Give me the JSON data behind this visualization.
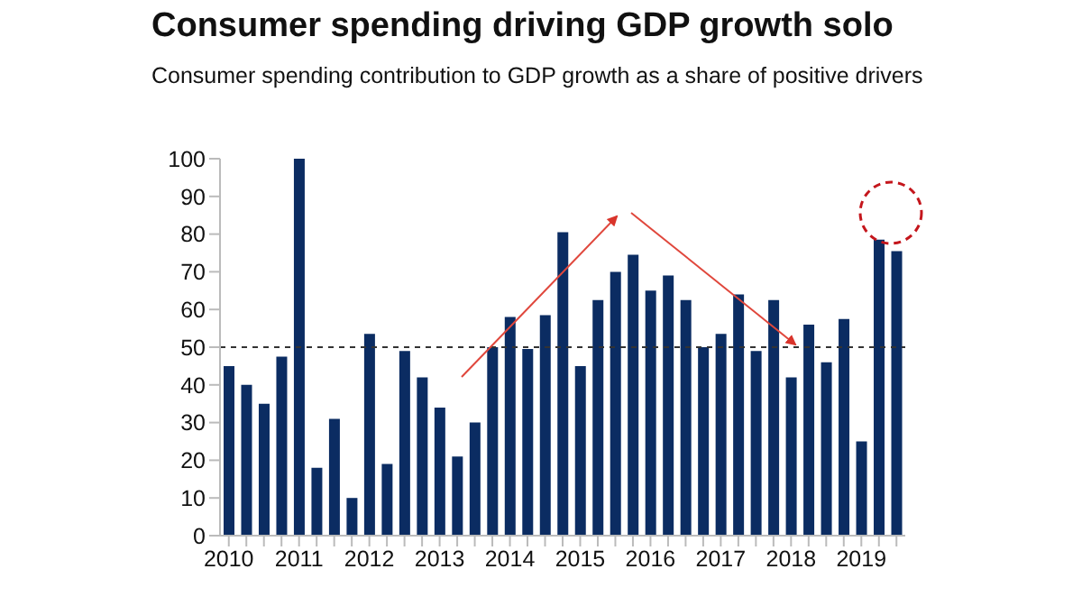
{
  "chart_data": {
    "type": "bar",
    "title": "Consumer spending driving GDP growth solo",
    "subtitle": "Consumer spending contribution to GDP growth as a share of positive drivers",
    "categories": [
      "2010",
      null,
      null,
      null,
      "2011",
      null,
      null,
      null,
      "2012",
      null,
      null,
      null,
      "2013",
      null,
      null,
      null,
      "2014",
      null,
      null,
      null,
      "2015",
      null,
      null,
      null,
      "2016",
      null,
      null,
      null,
      "2017",
      null,
      null,
      null,
      "2018",
      null,
      null,
      null,
      "2019",
      null,
      null
    ],
    "values": [
      45,
      40,
      35,
      47.5,
      100,
      18,
      31,
      10,
      53.5,
      19,
      49,
      42,
      34,
      21,
      30,
      50,
      58,
      49.5,
      58.5,
      80.5,
      45,
      62.5,
      70,
      74.5,
      65,
      69,
      62.5,
      50,
      53.5,
      64,
      49,
      62.5,
      42,
      56,
      46,
      57.5,
      25,
      78.5,
      75.5
    ],
    "color": "#0b2c62",
    "ylim": [
      0,
      100
    ],
    "yticks": [
      0,
      10,
      20,
      30,
      40,
      50,
      60,
      70,
      80,
      90,
      100
    ],
    "grid": false,
    "legend": false,
    "ref_lines": [
      {
        "axis": "y",
        "value": 50,
        "line_style": "dashed",
        "color": "#333333"
      }
    ]
  }
}
